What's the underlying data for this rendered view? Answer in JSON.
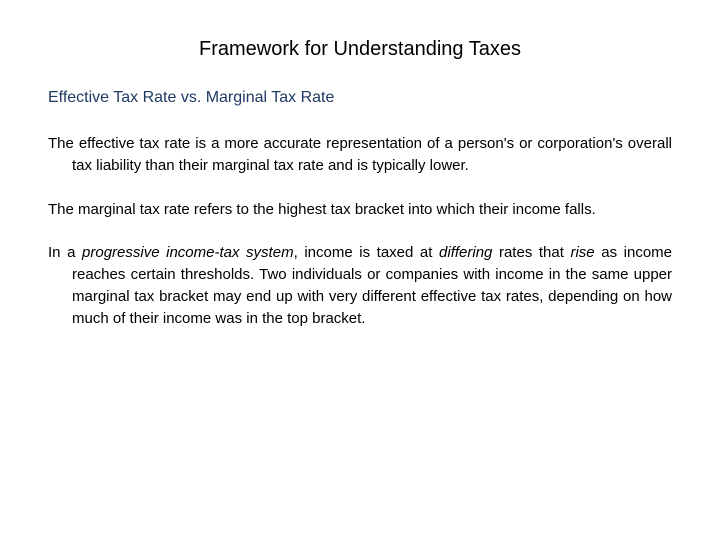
{
  "title": "Framework for Understanding Taxes",
  "subtitle": "Effective Tax Rate vs. Marginal Tax Rate",
  "subtitle_color": "#1f3a63",
  "para1": "The effective tax rate is a more accurate representation of a person's or corporation's overall tax liability than their marginal tax rate and is typically lower.",
  "para2": "The marginal tax rate refers to the highest tax bracket into which their income falls.",
  "para3_part1": "In a ",
  "para3_ital1": "progressive income-tax system",
  "para3_part2": ", income is taxed at ",
  "para3_ital2": "differing",
  "para3_part3": " rates that ",
  "para3_ital3": "rise",
  "para3_part4": " as income reaches certain thresholds. Two individuals or companies with income in the same upper marginal tax bracket may end up with very different effective tax rates, depending on how much of their income was in the top bracket.",
  "colors": {
    "background": "#ffffff",
    "body_text": "#000000",
    "subtitle": "#1f3a63"
  },
  "typography": {
    "title_fontsize": 20,
    "subtitle_fontsize": 16,
    "body_fontsize": 15,
    "font_family": "Arial"
  }
}
